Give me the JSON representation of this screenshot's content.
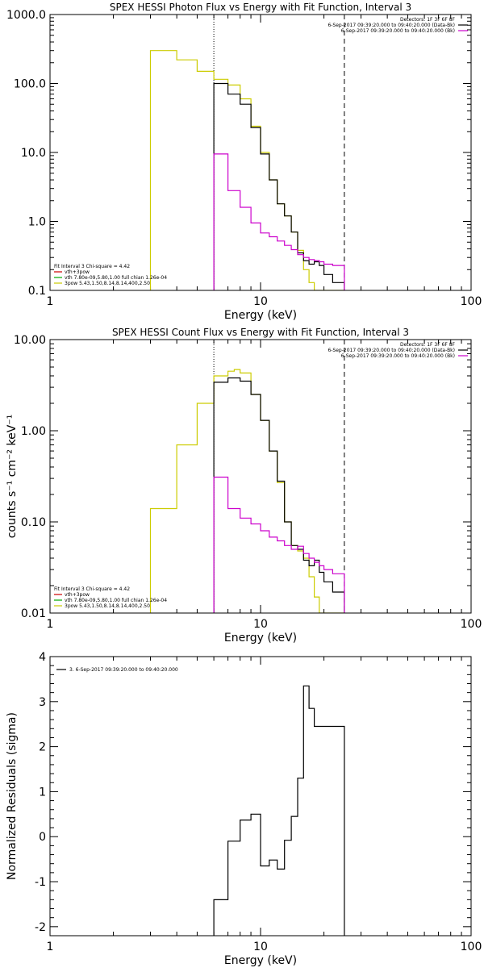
{
  "chart_data": [
    {
      "type": "line",
      "title": "SPEX HESSI Photon Flux vs Energy with Fit Function, Interval 3",
      "xlabel": "Energy (keV)",
      "ylabel": "",
      "x_scale": "log",
      "y_scale": "log",
      "xlim": [
        1,
        100
      ],
      "ylim": [
        0.1,
        1000
      ],
      "x_ticks": [
        1,
        10,
        100
      ],
      "x_tick_labels": [
        "1",
        "10",
        "100"
      ],
      "y_ticks": [
        0.1,
        1,
        10,
        100,
        1000
      ],
      "y_tick_labels": [
        "0.1",
        "1.0",
        "10.0",
        "100.0",
        "1000.0"
      ],
      "vlines": [
        {
          "x": 6.0,
          "style": "dotted"
        },
        {
          "x": 25.0,
          "style": "dashed"
        }
      ],
      "info_lines": [
        "Detectors: 1F 3F 6F 8F",
        "6-Sep-2017 09:39:20.000 to 09:40:20.000 (Data-Bk)",
        "6-Sep-2017 09:39:20.000 to 09:40:20.000 (Bk)"
      ],
      "info_colors": [
        "",
        "#000000",
        "#cc00cc"
      ],
      "legend": {
        "header": "Fit Interval 3   Chi-square = 4.42",
        "entries": [
          {
            "text": "vth+3pow",
            "color": "#cc0000"
          },
          {
            "text": "vth 7.80e-09,5.80,1.00  full chian 1.26e-04",
            "color": "#00aa00"
          },
          {
            "text": "3pow 5.43,1.50,8.14,8.14,400,2.50",
            "color": "#cccc00"
          }
        ]
      },
      "series": [
        {
          "color": "#cccc00",
          "edges": [
            3,
            4,
            5,
            6,
            7,
            8,
            9,
            10,
            11,
            12,
            13,
            14,
            15,
            16,
            17,
            18,
            19,
            20,
            22,
            25
          ],
          "values": [
            300,
            220,
            150,
            115,
            95,
            60,
            24,
            10,
            4.0,
            1.8,
            1.2,
            0.7,
            0.38,
            0.2,
            0.13,
            0.1,
            0.1,
            0.1,
            0.1
          ]
        },
        {
          "color": "#000000",
          "edges": [
            6,
            7,
            8,
            9,
            10,
            11,
            12,
            13,
            14,
            15,
            16,
            17,
            18,
            19,
            20,
            22,
            25
          ],
          "values": [
            100,
            70,
            50,
            23,
            9.5,
            4.0,
            1.8,
            1.2,
            0.7,
            0.35,
            0.27,
            0.24,
            0.26,
            0.23,
            0.17,
            0.13
          ]
        },
        {
          "color": "#cc00cc",
          "edges": [
            6,
            7,
            8,
            9,
            10,
            11,
            12,
            13,
            14,
            15,
            16,
            17,
            18,
            19,
            20,
            22,
            25
          ],
          "values": [
            9.5,
            2.8,
            1.6,
            0.95,
            0.68,
            0.6,
            0.52,
            0.45,
            0.39,
            0.33,
            0.3,
            0.28,
            0.27,
            0.26,
            0.24,
            0.23
          ]
        }
      ]
    },
    {
      "type": "line",
      "title": "SPEX HESSI Count Flux vs Energy with Fit Function, Interval 3",
      "xlabel": "Energy (keV)",
      "ylabel": "counts s⁻¹ cm⁻² keV⁻¹",
      "x_scale": "log",
      "y_scale": "log",
      "xlim": [
        1,
        100
      ],
      "ylim": [
        0.01,
        10
      ],
      "x_ticks": [
        1,
        10,
        100
      ],
      "x_tick_labels": [
        "1",
        "10",
        "100"
      ],
      "y_ticks": [
        0.01,
        0.1,
        1,
        10
      ],
      "y_tick_labels": [
        "0.01",
        "0.10",
        "1.00",
        "10.00"
      ],
      "vlines": [
        {
          "x": 6.0,
          "style": "dotted"
        },
        {
          "x": 25.0,
          "style": "dashed"
        }
      ],
      "info_lines": [
        "Detectors: 1F 3F 6F 8F",
        "6-Sep-2017 09:39:20.000 to 09:40:20.000 (Data-Bk)",
        "6-Sep-2017 09:39:20.000 to 09:40:20.000 (Bk)"
      ],
      "info_colors": [
        "",
        "#000000",
        "#cc00cc"
      ],
      "legend": {
        "header": "Fit Interval 3   Chi-square = 4.42",
        "entries": [
          {
            "text": "vth+3pow",
            "color": "#cc0000"
          },
          {
            "text": "vth 7.80e-09,5.80,1.00  full chian 1.26e-04",
            "color": "#00aa00"
          },
          {
            "text": "3pow 5.43,1.50,8.14,8.14,400,2.50",
            "color": "#cccc00"
          }
        ]
      },
      "series": [
        {
          "color": "#cccc00",
          "edges": [
            3,
            4,
            5,
            6,
            7,
            7.5,
            8,
            9,
            10,
            11,
            12,
            13,
            14,
            15,
            16,
            17,
            18,
            19,
            20,
            22,
            25
          ],
          "values": [
            0.14,
            0.7,
            2.0,
            4.0,
            4.5,
            4.7,
            4.3,
            2.5,
            1.3,
            0.6,
            0.27,
            0.1,
            0.055,
            0.048,
            0.04,
            0.025,
            0.015,
            0.01,
            0.01,
            0.01
          ]
        },
        {
          "color": "#000000",
          "edges": [
            6,
            7,
            8,
            9,
            10,
            11,
            12,
            13,
            14,
            15,
            16,
            17,
            18,
            19,
            20,
            22,
            25
          ],
          "values": [
            3.4,
            3.8,
            3.5,
            2.5,
            1.3,
            0.6,
            0.28,
            0.1,
            0.055,
            0.05,
            0.038,
            0.033,
            0.038,
            0.028,
            0.022,
            0.017
          ]
        },
        {
          "color": "#cc00cc",
          "edges": [
            6,
            7,
            8,
            9,
            10,
            11,
            12,
            13,
            14,
            15,
            16,
            17,
            18,
            19,
            20,
            22,
            25
          ],
          "values": [
            0.31,
            0.14,
            0.11,
            0.095,
            0.08,
            0.068,
            0.062,
            0.055,
            0.05,
            0.054,
            0.045,
            0.04,
            0.036,
            0.033,
            0.03,
            0.027
          ]
        }
      ]
    },
    {
      "type": "line",
      "title": "",
      "xlabel": "Energy (keV)",
      "ylabel": "Normalized Residuals (sigma)",
      "x_scale": "log",
      "y_scale": "linear",
      "xlim": [
        1,
        100
      ],
      "ylim": [
        -2.2,
        4
      ],
      "x_ticks": [
        1,
        10,
        100
      ],
      "x_tick_labels": [
        "1",
        "10",
        "100"
      ],
      "y_ticks": [
        -2,
        -1,
        0,
        1,
        2,
        3,
        4
      ],
      "y_tick_labels": [
        "-2",
        "-1",
        "0",
        "1",
        "2",
        "3",
        "4"
      ],
      "legend": {
        "header": "",
        "entries": [
          {
            "text": "3.  6-Sep-2017 09:39:20.000 to 09:40:20.000",
            "color": "#000000"
          }
        ]
      },
      "series": [
        {
          "color": "#000000",
          "edges": [
            6,
            7,
            8,
            9,
            10,
            11,
            12,
            13,
            14,
            15,
            16,
            17,
            18,
            19,
            20,
            22,
            25
          ],
          "values": [
            -1.4,
            -0.1,
            0.37,
            0.5,
            -0.65,
            -0.52,
            -0.72,
            -0.08,
            0.45,
            1.3,
            3.35,
            2.85,
            2.45,
            2.45,
            2.45,
            2.45
          ]
        }
      ]
    }
  ]
}
